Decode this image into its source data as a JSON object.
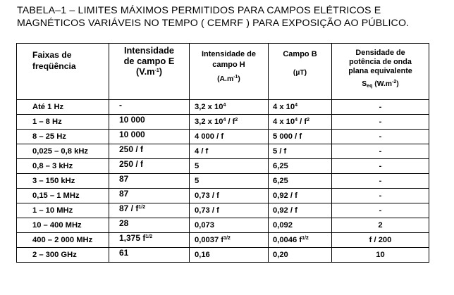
{
  "caption": {
    "line1": "TABELA–1 – LIMITES MÁXIMOS PERMITIDOS PARA CAMPOS ELÉTRICOS E",
    "line2": "MAGNÉTICOS VARIÁVEIS NO TEMPO ( CEMRF ) PARA EXPOSIÇÃO AO PÚBLICO."
  },
  "headers": {
    "freq": [
      "Faixas de",
      "freqüência"
    ],
    "e_field": [
      "Intensidade",
      "de campo E",
      "(V.m",
      "-1",
      ")"
    ],
    "h_field": [
      "Intensidade de",
      "campo H",
      "(A.m",
      "-1",
      ")"
    ],
    "b_field": [
      "Campo B",
      "(µT)"
    ],
    "power_density": [
      "Densidade de",
      "potência de onda",
      "plana equivalente",
      "S",
      "eq",
      " (W.m",
      "-2",
      ")"
    ]
  },
  "rows": [
    {
      "freq": "Até 1 Hz",
      "e": "-",
      "e_sup": "",
      "h": "3,2 x 10",
      "h_sup": "4",
      "h_tail": "",
      "h_tail_sup": "",
      "b": "4 x 10",
      "b_sup": "4",
      "b_tail": "",
      "b_tail_sup": "",
      "s": "-"
    },
    {
      "freq": "1 – 8 Hz",
      "e": "10 000",
      "e_sup": "",
      "h": "3,2 x 10",
      "h_sup": "4",
      "h_tail": " / f",
      "h_tail_sup": "2",
      "b": "4 x 10",
      "b_sup": "4",
      "b_tail": " / f",
      "b_tail_sup": "2",
      "s": "-"
    },
    {
      "freq": "8 – 25 Hz",
      "e": "10 000",
      "e_sup": "",
      "h": "4 000 / f",
      "h_sup": "",
      "h_tail": "",
      "h_tail_sup": "",
      "b": "5 000 / f",
      "b_sup": "",
      "b_tail": "",
      "b_tail_sup": "",
      "s": "-"
    },
    {
      "freq": "0,025 – 0,8 kHz",
      "e": "250 / f",
      "e_sup": "",
      "h": "4 / f",
      "h_sup": "",
      "h_tail": "",
      "h_tail_sup": "",
      "b": "5 / f",
      "b_sup": "",
      "b_tail": "",
      "b_tail_sup": "",
      "s": "-"
    },
    {
      "freq": "0,8 – 3 kHz",
      "e": "250 / f",
      "e_sup": "",
      "h": "5",
      "h_sup": "",
      "h_tail": "",
      "h_tail_sup": "",
      "b": "6,25",
      "b_sup": "",
      "b_tail": "",
      "b_tail_sup": "",
      "s": "-"
    },
    {
      "freq": "3 – 150 kHz",
      "e": "87",
      "e_sup": "",
      "h": "5",
      "h_sup": "",
      "h_tail": "",
      "h_tail_sup": "",
      "b": "6,25",
      "b_sup": "",
      "b_tail": "",
      "b_tail_sup": "",
      "s": "-"
    },
    {
      "freq": "0,15 – 1 MHz",
      "e": "87",
      "e_sup": "",
      "h": "0,73 / f",
      "h_sup": "",
      "h_tail": "",
      "h_tail_sup": "",
      "b": "0,92 / f",
      "b_sup": "",
      "b_tail": "",
      "b_tail_sup": "",
      "s": "-"
    },
    {
      "freq": "1 – 10 MHz",
      "e": "87 / f",
      "e_sup": "1/2",
      "h": "0,73 / f",
      "h_sup": "",
      "h_tail": "",
      "h_tail_sup": "",
      "b": "0,92 / f",
      "b_sup": "",
      "b_tail": "",
      "b_tail_sup": "",
      "s": "-"
    },
    {
      "freq": "10 – 400 MHz",
      "e": "28",
      "e_sup": "",
      "h": "0,073",
      "h_sup": "",
      "h_tail": "",
      "h_tail_sup": "",
      "b": "0,092",
      "b_sup": "",
      "b_tail": "",
      "b_tail_sup": "",
      "s": "2"
    },
    {
      "freq": "400 – 2 000 MHz",
      "e": "1,375 f",
      "e_sup": "1/2",
      "h": "0,0037 f",
      "h_sup": "1/2",
      "h_tail": "",
      "h_tail_sup": "",
      "b": "0,0046 f",
      "b_sup": "1/2",
      "b_tail": "",
      "b_tail_sup": "",
      "s": "f / 200"
    },
    {
      "freq": "2 – 300 GHz",
      "e": "61",
      "e_sup": "",
      "h": "0,16",
      "h_sup": "",
      "h_tail": "",
      "h_tail_sup": "",
      "b": "0,20",
      "b_sup": "",
      "b_tail": "",
      "b_tail_sup": "",
      "s": "10"
    }
  ]
}
